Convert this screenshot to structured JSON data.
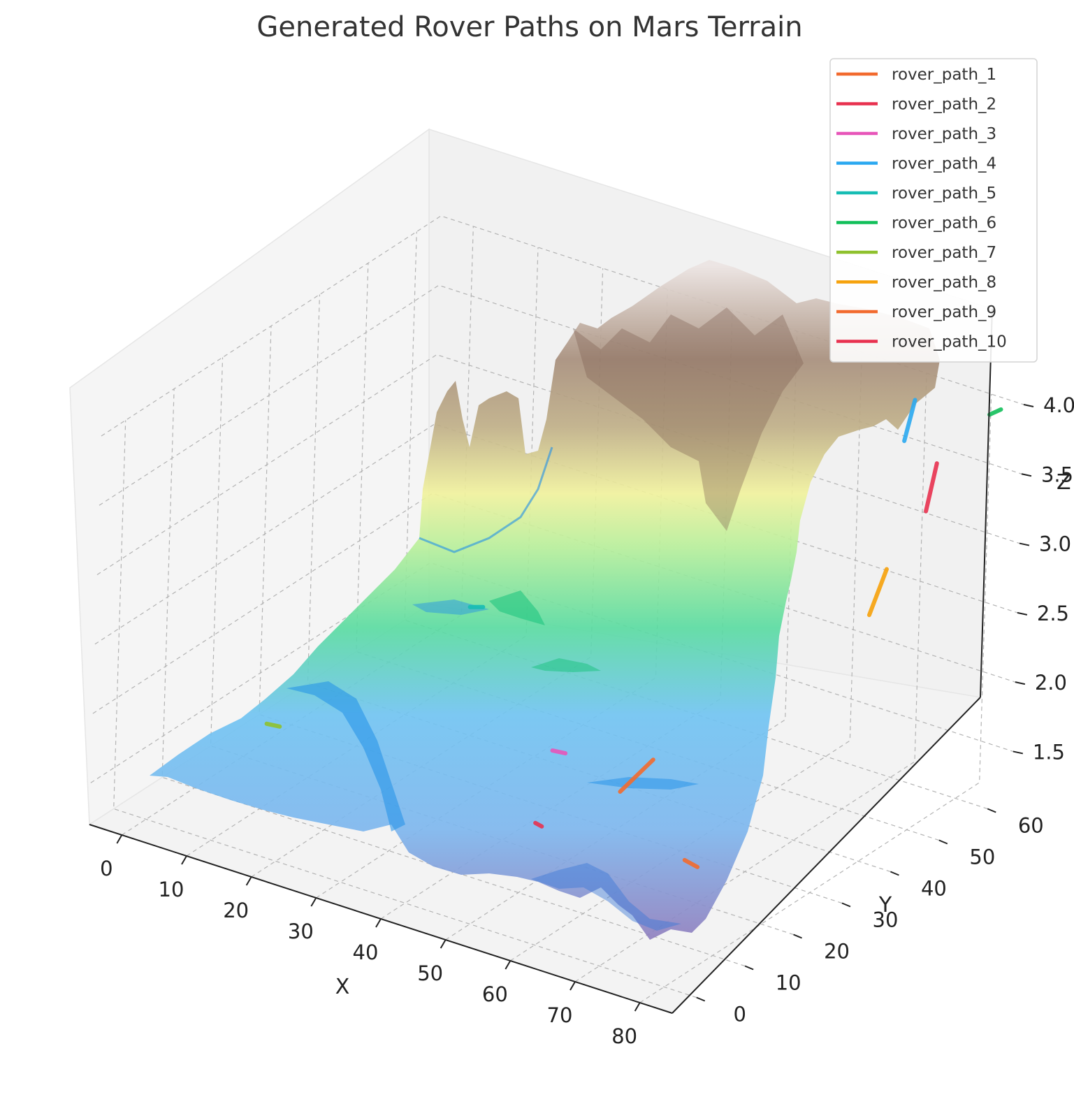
{
  "chart_data": {
    "type": "surface3d",
    "title": "Generated Rover Paths on Mars Terrain",
    "xlabel": "X",
    "ylabel": "Y",
    "zlabel": "Z",
    "xticks": [
      0,
      10,
      20,
      30,
      40,
      50,
      60,
      70,
      80
    ],
    "yticks": [
      0,
      10,
      20,
      30,
      40,
      50,
      60
    ],
    "zticks": [
      1.5,
      2.0,
      2.5,
      3.0,
      3.5,
      4.0
    ],
    "xlim": [
      -5,
      85
    ],
    "ylim": [
      -5,
      65
    ],
    "zlim": [
      1.2,
      4.0
    ],
    "colormap": "terrain",
    "legend_position": "top-right",
    "series": [
      {
        "name": "rover_path_1",
        "color": "#f26a2e",
        "points": [
          [
            68,
            20,
            1.48
          ],
          [
            70,
            20,
            1.46
          ]
        ]
      },
      {
        "name": "rover_path_2",
        "color": "#e8314f",
        "points": [
          [
            80,
            52,
            3.45
          ],
          [
            80,
            54,
            3.75
          ]
        ]
      },
      {
        "name": "rover_path_3",
        "color": "#e755b9",
        "points": [
          [
            40,
            30,
            1.62
          ],
          [
            42,
            30,
            1.63
          ]
        ]
      },
      {
        "name": "rover_path_4",
        "color": "#2aa8f0",
        "points": [
          [
            72,
            58,
            3.7
          ],
          [
            72,
            60,
            3.95
          ]
        ]
      },
      {
        "name": "rover_path_5",
        "color": "#16bdb4",
        "points": [
          [
            18,
            42,
            2.05
          ],
          [
            20,
            42,
            2.08
          ]
        ]
      },
      {
        "name": "rover_path_6",
        "color": "#12bf5a",
        "points": [
          [
            82,
            62,
            3.95
          ],
          [
            83,
            63,
            3.98
          ]
        ]
      },
      {
        "name": "rover_path_7",
        "color": "#8fc12e",
        "points": [
          [
            2,
            22,
            1.42
          ],
          [
            4,
            22,
            1.43
          ]
        ]
      },
      {
        "name": "rover_path_8",
        "color": "#f6a10a",
        "points": [
          [
            82,
            38,
            3.05
          ],
          [
            83,
            40,
            3.35
          ]
        ]
      },
      {
        "name": "rover_path_9",
        "color": "#f26a2e",
        "points": [
          [
            52,
            28,
            1.55
          ],
          [
            54,
            32,
            1.72
          ]
        ]
      },
      {
        "name": "rover_path_10",
        "color": "#e8314f",
        "points": [
          [
            45,
            20,
            1.4
          ],
          [
            46,
            20,
            1.39
          ]
        ]
      }
    ]
  }
}
